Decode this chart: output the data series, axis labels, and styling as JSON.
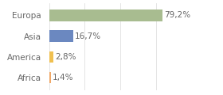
{
  "categories": [
    "Africa",
    "America",
    "Asia",
    "Europa"
  ],
  "values": [
    1.4,
    2.8,
    16.7,
    79.2
  ],
  "labels": [
    "1,4%",
    "2,8%",
    "16,7%",
    "79,2%"
  ],
  "colors": [
    "#f0a868",
    "#f0c050",
    "#6b88c0",
    "#a8bc90"
  ],
  "background_color": "#ffffff",
  "grid_color": "#e0e0e0",
  "text_color": "#666666",
  "xlim": [
    0,
    100
  ],
  "bar_height": 0.55,
  "label_fontsize": 7.5,
  "tick_fontsize": 7.5,
  "grid_x": [
    0,
    25,
    50,
    75,
    100
  ]
}
